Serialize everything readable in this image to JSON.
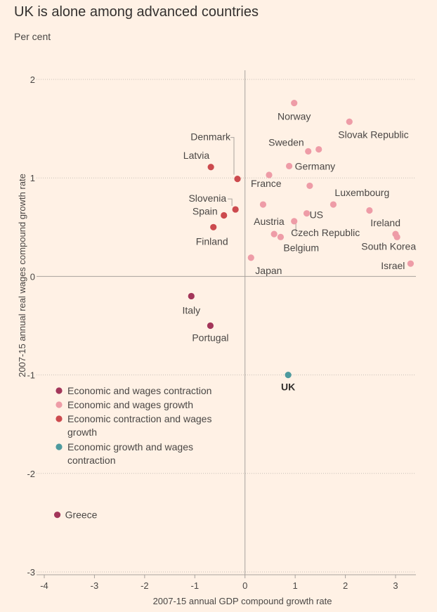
{
  "header": {
    "title": "UK is alone among advanced countries",
    "subtitle": "Per cent"
  },
  "colors": {
    "background": "#fff1e5",
    "contraction": "#a3365a",
    "growth": "#ee9ca7",
    "econ_contraction_wage_growth": "#cc4a4e",
    "econ_growth_wage_contraction": "#4d9a9e",
    "grid": "#c7bfb6",
    "axis": "#a8a29d"
  },
  "chart_data": {
    "type": "scatter",
    "title": "UK is alone among advanced countries",
    "subtitle": "Per cent",
    "xlabel": "2007-15 annual GDP compound growth rate",
    "ylabel": "2007-15 annual real wages compound growth rate",
    "xlim": [
      -4,
      3.3
    ],
    "ylim": [
      -3,
      2
    ],
    "xticks": [
      -4,
      -3,
      -2,
      -1,
      0,
      1,
      2,
      3
    ],
    "yticks": [
      -3,
      -2,
      -1,
      0,
      1,
      2
    ],
    "legend": [
      {
        "key": "c1",
        "label": "Economic and wages contraction"
      },
      {
        "key": "c2",
        "label": "Economic and wages growth"
      },
      {
        "key": "c3",
        "label": "Economic contraction and wages growth"
      },
      {
        "key": "c4",
        "label": "Economic growth and wages contraction"
      }
    ],
    "points": [
      {
        "label": "Norway",
        "x": 0.98,
        "y": 1.76,
        "cat": "c2"
      },
      {
        "label": "Slovak Republic",
        "x": 2.08,
        "y": 1.57,
        "cat": "c2"
      },
      {
        "label": "Sweden",
        "x": 1.26,
        "y": 1.27,
        "cat": "c2"
      },
      {
        "label": "",
        "x": 1.47,
        "y": 1.29,
        "cat": "c2"
      },
      {
        "label": "Germany",
        "x": 0.88,
        "y": 1.12,
        "cat": "c2"
      },
      {
        "label": "France",
        "x": 0.48,
        "y": 1.03,
        "cat": "c2"
      },
      {
        "label": "",
        "x": 1.29,
        "y": 0.92,
        "cat": "c2"
      },
      {
        "label": "Luxembourg",
        "x": 1.76,
        "y": 0.73,
        "cat": "c2"
      },
      {
        "label": "",
        "x": 2.48,
        "y": 0.67,
        "cat": "c2"
      },
      {
        "label": "",
        "x": 0.36,
        "y": 0.73,
        "cat": "c2"
      },
      {
        "label": "US",
        "x": 1.23,
        "y": 0.64,
        "cat": "c2"
      },
      {
        "label": "Austria",
        "x": 0.98,
        "y": 0.56,
        "cat": "c2"
      },
      {
        "label": "Czech Republic",
        "x": 0.58,
        "y": 0.43,
        "cat": "c2"
      },
      {
        "label": "Belgium",
        "x": 0.71,
        "y": 0.4,
        "cat": "c2"
      },
      {
        "label": "Ireland",
        "x": 3.0,
        "y": 0.43,
        "cat": "c2"
      },
      {
        "label": "South Korea",
        "x": 3.03,
        "y": 0.4,
        "cat": "c2"
      },
      {
        "label": "Israel",
        "x": 3.3,
        "y": 0.13,
        "cat": "c2"
      },
      {
        "label": "Japan",
        "x": 0.12,
        "y": 0.19,
        "cat": "c2"
      },
      {
        "label": "Denmark",
        "x": -0.15,
        "y": 0.99,
        "cat": "c3"
      },
      {
        "label": "Latvia",
        "x": -0.68,
        "y": 1.11,
        "cat": "c3"
      },
      {
        "label": "Slovenia",
        "x": -0.19,
        "y": 0.68,
        "cat": "c3"
      },
      {
        "label": "Spain",
        "x": -0.42,
        "y": 0.62,
        "cat": "c3"
      },
      {
        "label": "Finland",
        "x": -0.63,
        "y": 0.5,
        "cat": "c3"
      },
      {
        "label": "Italy",
        "x": -1.07,
        "y": -0.2,
        "cat": "c1"
      },
      {
        "label": "Portugal",
        "x": -0.69,
        "y": -0.5,
        "cat": "c1"
      },
      {
        "label": "Greece",
        "x": -3.74,
        "y": -2.42,
        "cat": "c1"
      },
      {
        "label": "UK",
        "x": 0.86,
        "y": -1.0,
        "cat": "c4"
      }
    ]
  }
}
